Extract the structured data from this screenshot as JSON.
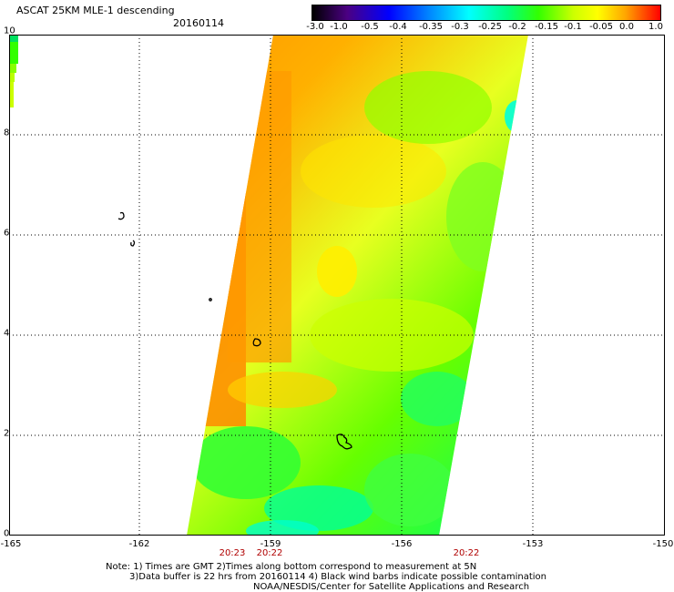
{
  "header": {
    "title": "ASCAT 25KM MLE-1 descending",
    "date": "20160114"
  },
  "colorbar": {
    "labels": [
      "-3.0",
      "-1.0",
      "-0.5",
      "-0.4",
      "-0.35",
      "-0.3",
      "-0.25",
      "-0.2",
      "-0.15",
      "-0.1",
      "-0.05",
      "0.0",
      "1.0"
    ],
    "colors": [
      "#000000",
      "#4b0082",
      "#0000ff",
      "#0080ff",
      "#00ffff",
      "#00ff80",
      "#33ff00",
      "#ccff00",
      "#ffff00",
      "#ffa500",
      "#ff0000"
    ]
  },
  "axes": {
    "lat_labels": [
      "10",
      "8",
      "6",
      "4",
      "2",
      "0"
    ],
    "lon_labels": [
      "-165",
      "-162",
      "-159",
      "-156",
      "-153",
      "-150"
    ],
    "grid": "dotted"
  },
  "times": [
    "20:23",
    "20:22",
    "20:22"
  ],
  "notes": [
    "Note: 1) Times are GMT 2)Times along bottom correspond to measurement at 5N",
    "3)Data buffer is 22 hrs from 20160114 4) Black wind barbs indicate possible contamination",
    "NOAA/NESDIS/Center for Satellite Applications and Research"
  ]
}
